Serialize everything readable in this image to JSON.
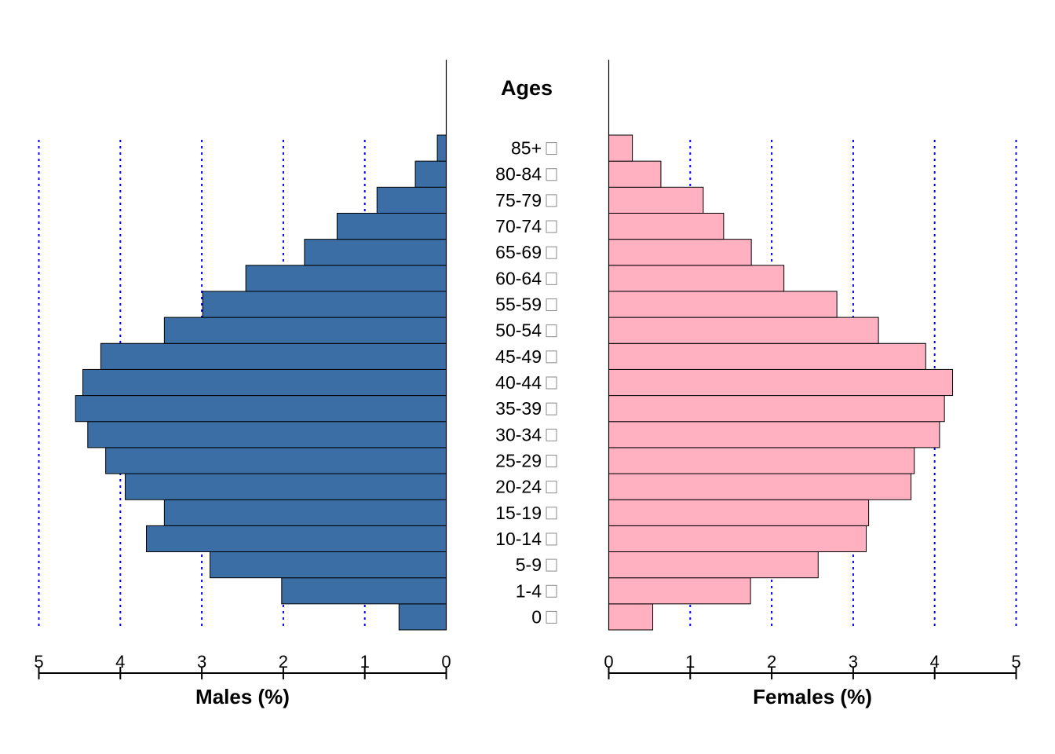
{
  "chart_data": {
    "type": "bar",
    "orientation": "horizontal",
    "layout": "population-pyramid",
    "center_title": "Ages",
    "categories": [
      "0",
      "1-4",
      "5-9",
      "10-14",
      "15-19",
      "20-24",
      "25-29",
      "30-34",
      "35-39",
      "40-44",
      "45-49",
      "50-54",
      "55-59",
      "60-64",
      "65-69",
      "70-74",
      "75-79",
      "80-84",
      "85+"
    ],
    "series": [
      {
        "side": "left",
        "xlabel": "Males (%)",
        "color": "#3a6ea5",
        "values": [
          0.58,
          2.02,
          2.9,
          3.68,
          3.46,
          3.94,
          4.18,
          4.4,
          4.55,
          4.46,
          4.24,
          3.46,
          2.99,
          2.46,
          1.74,
          1.34,
          0.85,
          0.38,
          0.11
        ]
      },
      {
        "side": "right",
        "xlabel": "Females (%)",
        "color": "#ffb0c1",
        "values": [
          0.54,
          1.74,
          2.57,
          3.16,
          3.19,
          3.71,
          3.75,
          4.06,
          4.12,
          4.22,
          3.89,
          3.31,
          2.8,
          2.15,
          1.75,
          1.41,
          1.16,
          0.64,
          0.29
        ]
      }
    ],
    "xlim": [
      0,
      5
    ],
    "xticks": [
      0,
      1,
      2,
      3,
      4,
      5
    ],
    "grid": "vertical dotted",
    "grid_color": "#0000ff"
  }
}
